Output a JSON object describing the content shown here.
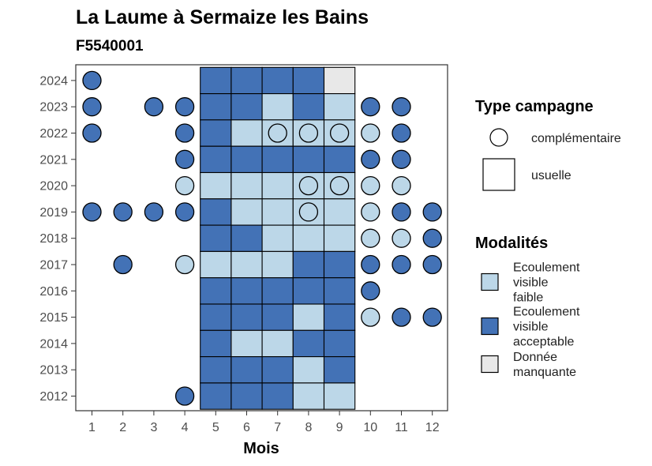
{
  "chart_data": {
    "type": "heatmap",
    "title": "La Laume à Sermaize les Bains",
    "subtitle": "F5540001",
    "xlabel": "Mois",
    "ylabel": "",
    "x_ticks": [
      "1",
      "2",
      "3",
      "4",
      "5",
      "6",
      "7",
      "8",
      "9",
      "10",
      "11",
      "12"
    ],
    "years": [
      2012,
      2013,
      2014,
      2015,
      2016,
      2017,
      2018,
      2019,
      2020,
      2021,
      2022,
      2023,
      2024
    ],
    "colors": {
      "faible": "#bcd7e8",
      "acceptable": "#4372b6",
      "manquante": "#e8e8e8"
    },
    "legend_type": {
      "title": "Type campagne",
      "items": [
        {
          "shape": "circle",
          "label": "complémentaire"
        },
        {
          "shape": "square",
          "label": "usuelle"
        }
      ]
    },
    "legend_modalites": {
      "title": "Modalités",
      "items": [
        {
          "key": "faible",
          "lines": [
            "Ecoulement",
            "visible",
            "faible"
          ]
        },
        {
          "key": "acceptable",
          "lines": [
            "Ecoulement",
            "visible",
            "acceptable"
          ]
        },
        {
          "key": "manquante",
          "lines": [
            "Donnée",
            "manquante"
          ]
        }
      ]
    },
    "usuelle": [
      {
        "year": 2024,
        "months": {
          "5": "acceptable",
          "6": "acceptable",
          "7": "acceptable",
          "8": "acceptable",
          "9": "manquante"
        }
      },
      {
        "year": 2023,
        "months": {
          "5": "acceptable",
          "6": "acceptable",
          "7": "faible",
          "8": "acceptable",
          "9": "faible"
        }
      },
      {
        "year": 2022,
        "months": {
          "5": "acceptable",
          "6": "faible",
          "7": "faible",
          "8": "faible",
          "9": "faible"
        }
      },
      {
        "year": 2021,
        "months": {
          "5": "acceptable",
          "6": "acceptable",
          "7": "acceptable",
          "8": "acceptable",
          "9": "acceptable"
        }
      },
      {
        "year": 2020,
        "months": {
          "5": "faible",
          "6": "faible",
          "7": "faible",
          "8": "faible",
          "9": "faible"
        }
      },
      {
        "year": 2019,
        "months": {
          "5": "acceptable",
          "6": "faible",
          "7": "faible",
          "8": "faible",
          "9": "faible"
        }
      },
      {
        "year": 2018,
        "months": {
          "5": "acceptable",
          "6": "acceptable",
          "7": "faible",
          "8": "faible",
          "9": "faible"
        }
      },
      {
        "year": 2017,
        "months": {
          "5": "faible",
          "6": "faible",
          "7": "faible",
          "8": "acceptable",
          "9": "acceptable"
        }
      },
      {
        "year": 2016,
        "months": {
          "5": "acceptable",
          "6": "acceptable",
          "7": "acceptable",
          "8": "acceptable",
          "9": "acceptable"
        }
      },
      {
        "year": 2015,
        "months": {
          "5": "acceptable",
          "6": "acceptable",
          "7": "acceptable",
          "8": "faible",
          "9": "acceptable"
        }
      },
      {
        "year": 2014,
        "months": {
          "5": "acceptable",
          "6": "faible",
          "7": "faible",
          "8": "acceptable",
          "9": "acceptable"
        }
      },
      {
        "year": 2013,
        "months": {
          "5": "acceptable",
          "6": "acceptable",
          "7": "acceptable",
          "8": "faible",
          "9": "acceptable"
        }
      },
      {
        "year": 2012,
        "months": {
          "5": "acceptable",
          "6": "acceptable",
          "7": "acceptable",
          "8": "faible",
          "9": "faible"
        }
      }
    ],
    "complementaire": [
      {
        "year": 2024,
        "month": 1,
        "value": "acceptable"
      },
      {
        "year": 2023,
        "month": 1,
        "value": "acceptable"
      },
      {
        "year": 2023,
        "month": 3,
        "value": "acceptable"
      },
      {
        "year": 2023,
        "month": 4,
        "value": "acceptable"
      },
      {
        "year": 2023,
        "month": 10,
        "value": "acceptable"
      },
      {
        "year": 2023,
        "month": 11,
        "value": "acceptable"
      },
      {
        "year": 2022,
        "month": 1,
        "value": "acceptable"
      },
      {
        "year": 2022,
        "month": 4,
        "value": "acceptable"
      },
      {
        "year": 2022,
        "month": 7,
        "value": "faible"
      },
      {
        "year": 2022,
        "month": 8,
        "value": "faible"
      },
      {
        "year": 2022,
        "month": 9,
        "value": "faible"
      },
      {
        "year": 2022,
        "month": 10,
        "value": "faible"
      },
      {
        "year": 2022,
        "month": 11,
        "value": "acceptable"
      },
      {
        "year": 2021,
        "month": 4,
        "value": "acceptable"
      },
      {
        "year": 2021,
        "month": 10,
        "value": "acceptable"
      },
      {
        "year": 2021,
        "month": 11,
        "value": "acceptable"
      },
      {
        "year": 2020,
        "month": 4,
        "value": "faible"
      },
      {
        "year": 2020,
        "month": 8,
        "value": "faible"
      },
      {
        "year": 2020,
        "month": 9,
        "value": "faible"
      },
      {
        "year": 2020,
        "month": 10,
        "value": "faible"
      },
      {
        "year": 2020,
        "month": 11,
        "value": "faible"
      },
      {
        "year": 2019,
        "month": 1,
        "value": "acceptable"
      },
      {
        "year": 2019,
        "month": 2,
        "value": "acceptable"
      },
      {
        "year": 2019,
        "month": 3,
        "value": "acceptable"
      },
      {
        "year": 2019,
        "month": 4,
        "value": "acceptable"
      },
      {
        "year": 2019,
        "month": 8,
        "value": "faible"
      },
      {
        "year": 2019,
        "month": 10,
        "value": "faible"
      },
      {
        "year": 2019,
        "month": 11,
        "value": "acceptable"
      },
      {
        "year": 2019,
        "month": 12,
        "value": "acceptable"
      },
      {
        "year": 2018,
        "month": 10,
        "value": "faible"
      },
      {
        "year": 2018,
        "month": 11,
        "value": "faible"
      },
      {
        "year": 2018,
        "month": 12,
        "value": "acceptable"
      },
      {
        "year": 2017,
        "month": 2,
        "value": "acceptable"
      },
      {
        "year": 2017,
        "month": 4,
        "value": "faible"
      },
      {
        "year": 2017,
        "month": 10,
        "value": "acceptable"
      },
      {
        "year": 2017,
        "month": 11,
        "value": "acceptable"
      },
      {
        "year": 2017,
        "month": 12,
        "value": "acceptable"
      },
      {
        "year": 2016,
        "month": 10,
        "value": "acceptable"
      },
      {
        "year": 2015,
        "month": 10,
        "value": "faible"
      },
      {
        "year": 2015,
        "month": 11,
        "value": "acceptable"
      },
      {
        "year": 2015,
        "month": 12,
        "value": "acceptable"
      },
      {
        "year": 2012,
        "month": 4,
        "value": "acceptable"
      }
    ]
  }
}
